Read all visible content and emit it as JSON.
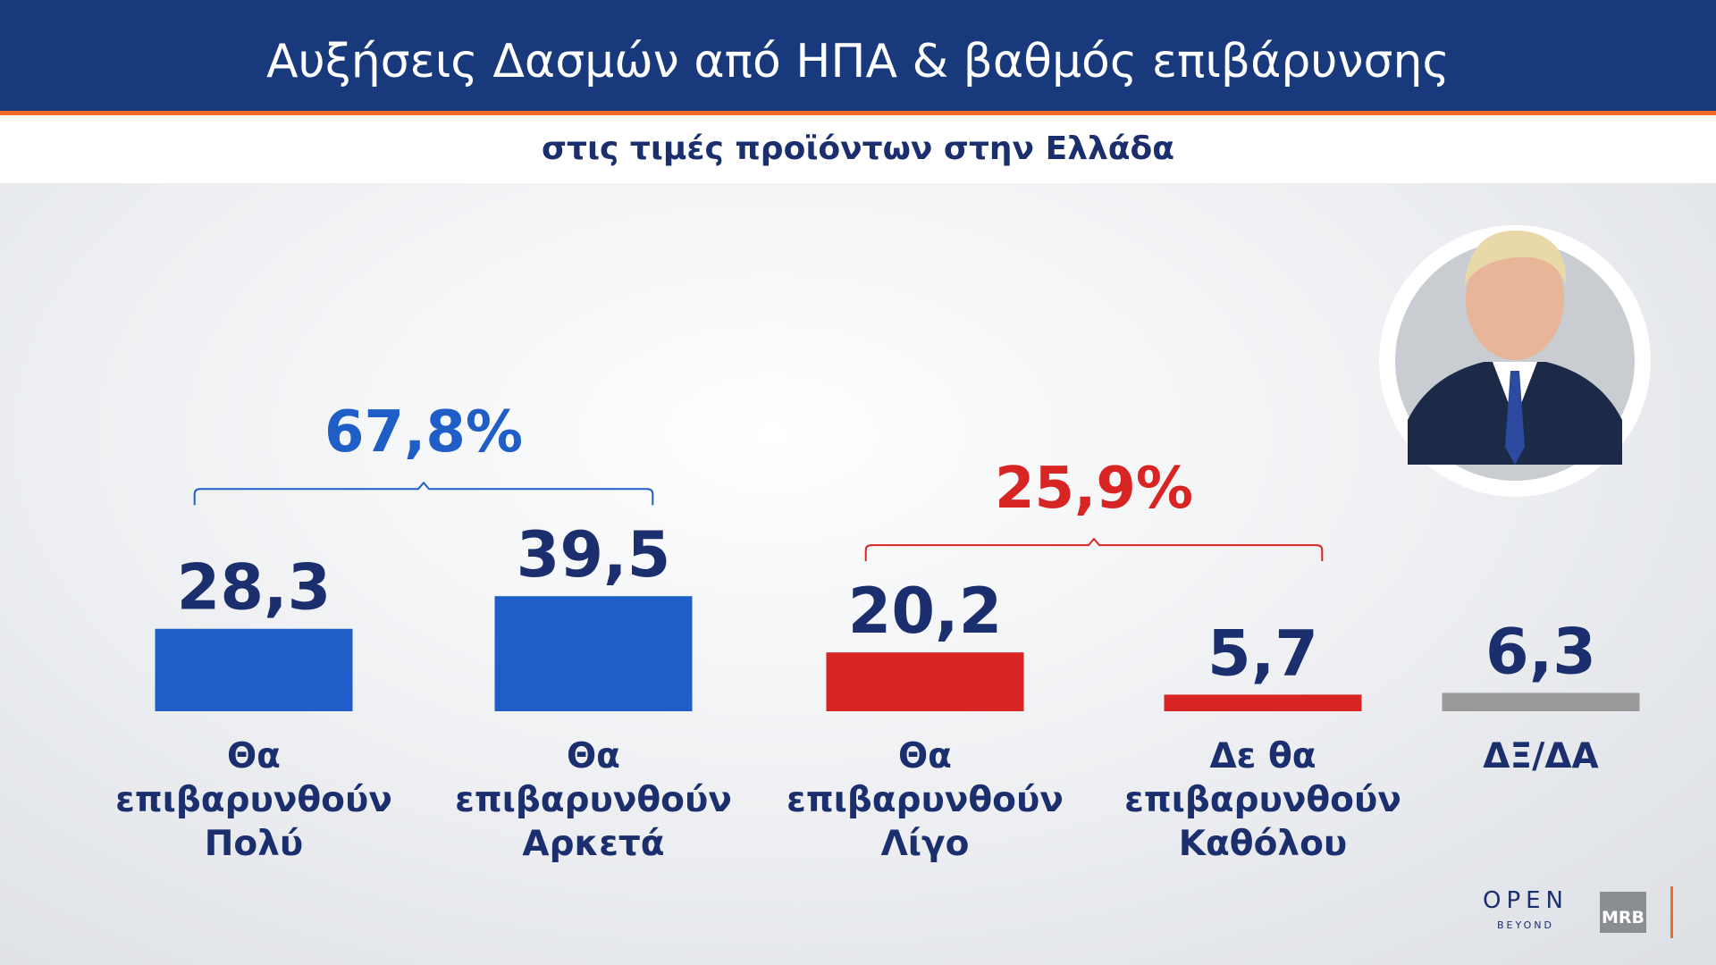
{
  "chart_data": {
    "type": "bar",
    "title": "Αυξήσεις Δασμών από ΗΠΑ & βαθμός επιβάρυνσης",
    "subtitle": "στις τιμές προϊόντων στην Ελλάδα",
    "categories": [
      "Θα επιβαρυνθούν Πολύ",
      "Θα επιβαρυνθούν Αρκετά",
      "Θα επιβαρυνθούν Λίγο",
      "Δε θα επιβαρυνθούν Καθόλου",
      "ΔΞ/ΔΑ"
    ],
    "values": [
      28.3,
      39.5,
      20.2,
      5.7,
      6.3
    ],
    "value_labels": [
      "28,3",
      "39,5",
      "20,2",
      "5,7",
      "6,3"
    ],
    "colors": [
      "#1f5ec7",
      "#1f5ec7",
      "#d92424",
      "#d92424",
      "#9a9a9a"
    ],
    "groups": [
      {
        "label": "67,8%",
        "color": "#1f5ec7",
        "members": [
          0,
          1
        ]
      },
      {
        "label": "25,9%",
        "color": "#d92424",
        "members": [
          2,
          3
        ]
      }
    ]
  },
  "logos": [
    "OPEN",
    "BEYOND",
    "MRB"
  ]
}
